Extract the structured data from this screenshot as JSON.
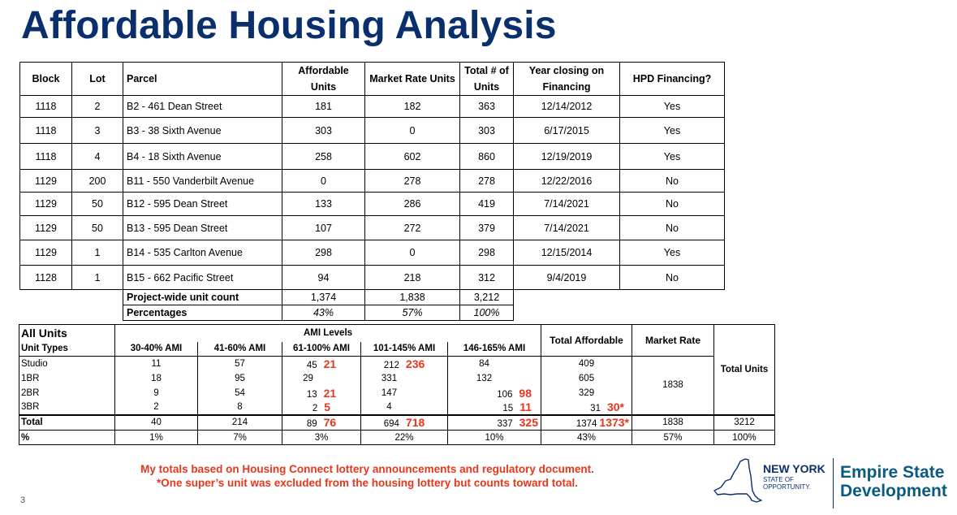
{
  "title": "Affordable Housing Analysis",
  "table1": {
    "headers": [
      "Block",
      "Lot",
      "Parcel",
      "Affordable Units",
      "Market Rate Units",
      "Total # of Units",
      "Year closing on Financing",
      "HPD Financing?"
    ],
    "rows": [
      [
        "1118",
        "2",
        "B2 - 461 Dean Street",
        "181",
        "182",
        "363",
        "12/14/2012",
        "Yes"
      ],
      [
        "1118",
        "3",
        "B3 - 38 Sixth Avenue",
        "303",
        "0",
        "303",
        "6/17/2015",
        "Yes"
      ],
      [
        "1118",
        "4",
        "B4 - 18 Sixth Avenue",
        "258",
        "602",
        "860",
        "12/19/2019",
        "Yes"
      ],
      [
        "1129",
        "200",
        "B11 - 550 Vanderbilt Avenue",
        "0",
        "278",
        "278",
        "12/22/2016",
        "No"
      ],
      [
        "1129",
        "50",
        "B12 - 595 Dean Street",
        "133",
        "286",
        "419",
        "7/14/2021",
        "No"
      ],
      [
        "1129",
        "50",
        "B13 - 595 Dean Street",
        "107",
        "272",
        "379",
        "7/14/2021",
        "No"
      ],
      [
        "1129",
        "1",
        "B14 - 535 Carlton Avenue",
        "298",
        "0",
        "298",
        "12/15/2014",
        "Yes"
      ],
      [
        "1128",
        "1",
        "B15 - 662 Pacific Street",
        "94",
        "218",
        "312",
        "9/4/2019",
        "No"
      ]
    ],
    "project_wide": {
      "label": "Project-wide unit count",
      "affordable": "1,374",
      "market": "1,838",
      "total": "3,212"
    },
    "percentages": {
      "label": "Percentages",
      "affordable": "43%",
      "market": "57%",
      "total": "100%"
    }
  },
  "table2": {
    "all_units": "All Units",
    "ami_levels": "AMI Levels",
    "unit_types": "Unit Types",
    "ami_cols": [
      "30-40% AMI",
      "41-60% AMI",
      "61-100% AMI",
      "101-145% AMI",
      "146-165% AMI"
    ],
    "total_affordable": "Total Affordable",
    "market_rate": "Market Rate",
    "total_units": "Total Units",
    "market_rate_value": "1838",
    "rows": [
      {
        "type": "Studio",
        "a": "11",
        "b": "57",
        "c": "45",
        "c_red": "21",
        "d": "212",
        "d_red": "236",
        "e": "84",
        "e_red": "",
        "ta": "409",
        "ta_red": ""
      },
      {
        "type": "1BR",
        "a": "18",
        "b": "95",
        "c": "29",
        "c_red": "",
        "d": "331",
        "d_red": "",
        "e": "132",
        "e_red": "",
        "ta": "605",
        "ta_red": ""
      },
      {
        "type": "2BR",
        "a": "9",
        "b": "54",
        "c": "13",
        "c_red": "21",
        "d": "147",
        "d_red": "",
        "e": "106",
        "e_red": "98",
        "ta": "329",
        "ta_red": ""
      },
      {
        "type": "3BR",
        "a": "2",
        "b": "8",
        "c": "2",
        "c_red": "5",
        "d": "4",
        "d_red": "",
        "e": "15",
        "e_red": "11",
        "ta": "31",
        "ta_red": "30*"
      }
    ],
    "total": {
      "label": "Total",
      "a": "40",
      "b": "214",
      "c": "89",
      "c_red": "76",
      "d": "694",
      "d_red": "718",
      "e": "337",
      "e_red": "325",
      "ta": "1374",
      "ta_red": "1373*",
      "mr": "1838",
      "tu": "3212"
    },
    "pct": {
      "label": "%",
      "a": "1%",
      "b": "7%",
      "c": "3%",
      "d": "22%",
      "e": "10%",
      "ta": "43%",
      "mr": "57%",
      "tu": "100%"
    }
  },
  "notes": {
    "line1": "My totals based on Housing Connect lottery announcements and regulatory document.",
    "line2": "*One super’s unit was excluded from the housing lottery but counts toward total."
  },
  "page_number": "3",
  "logo": {
    "ny_line": "NEW YORK",
    "tag_line1": "STATE OF",
    "tag_line2": "OPPORTUNITY.",
    "esd_line1": "Empire State",
    "esd_line2": "Development",
    "color_navy": "#0a2f6d",
    "color_teal": "#0a5a82"
  },
  "accent_red": "#e8361c"
}
